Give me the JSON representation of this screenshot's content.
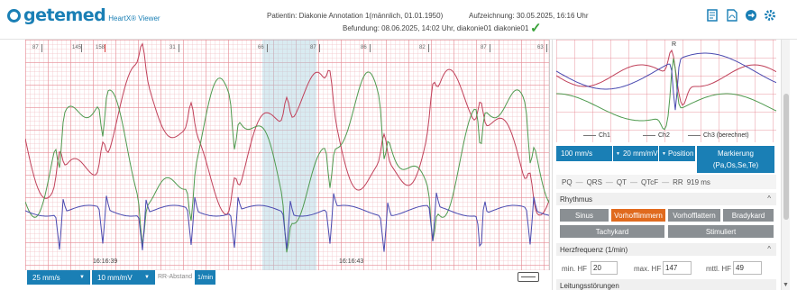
{
  "header": {
    "logo_word": "getemed",
    "logo_sub": "HeartX® Viewer",
    "patient": "Patientin: Diakonie Annotation 1(männlich, 01.01.1950)",
    "recording": "Aufzeichnung: 30.05.2025, 16:16 Uhr",
    "finding": "Befundung: 08.06.2025, 14:02 Uhr, diakonie01 diakonie01",
    "check_icon": "✓",
    "icons": [
      "report-list-icon",
      "pdf-icon",
      "export-icon",
      "settings-gear-icon"
    ]
  },
  "ecg": {
    "rr_markers": [
      "87",
      "145",
      "158",
      "31",
      "66",
      "87",
      "86",
      "82",
      "87",
      "63"
    ],
    "timestamps": [
      "16:16:39",
      "16:16:43"
    ]
  },
  "bottom": {
    "speed": "25 mm/s",
    "gain": "10 mm/mV",
    "rr_label": "RR-Abstand",
    "rr_unit": "1/min"
  },
  "panel": {
    "beat_label": "R",
    "legend": [
      "Ch1",
      "Ch2",
      "Ch3 (berechnet)"
    ],
    "speed": "100 mm/s",
    "gain": "20 mm/mV",
    "position": "Position",
    "marker_line1": "Markierung",
    "marker_line2": "(Pa,Os,Se,Te)",
    "measures": {
      "pq": "PQ",
      "pq_val": "—",
      "qrs": "QRS",
      "qrs_val": "—",
      "qt": "QT",
      "qt_val": "—",
      "qtcf": "QTcF",
      "qtcf_val": "—",
      "rr": "RR",
      "rr_val": "919 ms"
    },
    "rhythm_title": "Rhythmus",
    "rhythm_buttons": [
      "Sinus",
      "Vorhofflimmern",
      "Vorhofflattern",
      "Bradykard",
      "Tachykard",
      "Stimuliert"
    ],
    "rhythm_active": "Vorhofflimmern",
    "hr_title": "Herzfrequenz (1/min)",
    "hr_min_label": "min. HF",
    "hr_min": "20",
    "hr_max_label": "max. HF",
    "hr_max": "147",
    "hr_mean_label": "mttl. HF",
    "hr_mean": "49",
    "conduction_title": "Leitungsstörungen"
  },
  "colors": {
    "brand": "#1a7fb5",
    "active": "#e06a1e",
    "ch1": "#c0415a",
    "ch2": "#4f9a4f",
    "ch3": "#4a4ab0"
  }
}
